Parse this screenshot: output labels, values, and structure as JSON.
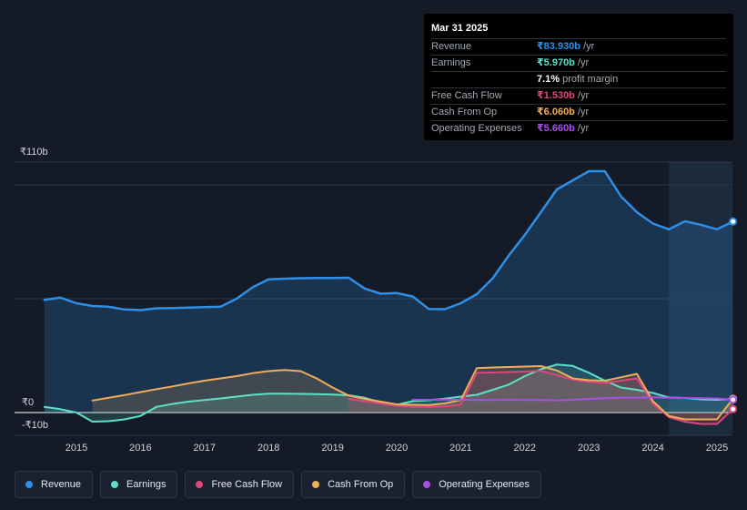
{
  "tooltip": {
    "date": "Mar 31 2025",
    "rows": [
      {
        "label": "Revenue",
        "value": "₹83.930b",
        "unit": "/yr",
        "color": "#2f8fe6"
      },
      {
        "label": "Earnings",
        "value": "₹5.970b",
        "unit": "/yr",
        "color": "#5ee0c8"
      },
      {
        "label": "",
        "value": "7.1%",
        "unit": "profit margin",
        "color": "#ffffff"
      },
      {
        "label": "Free Cash Flow",
        "value": "₹1.530b",
        "unit": "/yr",
        "color": "#e0457b"
      },
      {
        "label": "Cash From Op",
        "value": "₹6.060b",
        "unit": "/yr",
        "color": "#f0ad5a"
      },
      {
        "label": "Operating Expenses",
        "value": "₹5.660b",
        "unit": "/yr",
        "color": "#a94ee8"
      }
    ]
  },
  "chart_data": {
    "type": "area",
    "title": "",
    "xlabel": "",
    "ylabel": "",
    "ylim": [
      -10,
      110
    ],
    "y_tick_labels": [
      "₹110b",
      "₹0",
      "-₹10b"
    ],
    "y_ticks": [
      110,
      0,
      -10
    ],
    "x_tick_labels": [
      "2015",
      "2016",
      "2017",
      "2018",
      "2019",
      "2020",
      "2021",
      "2022",
      "2023",
      "2024",
      "2025"
    ],
    "x_ticks": [
      2015,
      2016,
      2017,
      2018,
      2019,
      2020,
      2021,
      2022,
      2023,
      2024,
      2025
    ],
    "xlim": [
      2014.5,
      2025.25
    ],
    "highlight_start": 2024.25,
    "series": [
      {
        "name": "Revenue",
        "color": "#2f8fe6",
        "fill": true,
        "x": [
          2014.5,
          2014.75,
          2015.0,
          2015.25,
          2015.5,
          2015.75,
          2016.0,
          2016.25,
          2016.5,
          2016.75,
          2017.0,
          2017.25,
          2017.5,
          2017.75,
          2018.0,
          2018.25,
          2018.5,
          2018.75,
          2019.0,
          2019.25,
          2019.5,
          2019.75,
          2020.0,
          2020.25,
          2020.5,
          2020.75,
          2021.0,
          2021.25,
          2021.5,
          2021.75,
          2022.0,
          2022.25,
          2022.5,
          2022.75,
          2023.0,
          2023.25,
          2023.5,
          2023.75,
          2024.0,
          2024.25,
          2024.5,
          2024.75,
          2025.0,
          2025.25
        ],
        "y": [
          49.5,
          50.5,
          48,
          46.8,
          46.5,
          45.3,
          45,
          45.8,
          45.9,
          46.1,
          46.3,
          46.5,
          50,
          55,
          58.5,
          58.8,
          59,
          59.1,
          59.1,
          59.2,
          54.5,
          52.2,
          52.5,
          51,
          45.5,
          45.4,
          48,
          52,
          59,
          69,
          78,
          88,
          98,
          102,
          106,
          106,
          95,
          88,
          83,
          80.5,
          84,
          82.5,
          80.5,
          83.9
        ]
      },
      {
        "name": "Earnings",
        "color": "#5ee0c8",
        "fill": true,
        "x": [
          2014.5,
          2014.75,
          2015.0,
          2015.25,
          2015.5,
          2015.75,
          2016.0,
          2016.25,
          2016.5,
          2016.75,
          2017.0,
          2017.25,
          2017.5,
          2017.75,
          2018.0,
          2018.25,
          2018.5,
          2018.75,
          2019.0,
          2019.25,
          2019.5,
          2019.75,
          2020.0,
          2020.25,
          2020.5,
          2020.75,
          2021.0,
          2021.25,
          2021.5,
          2021.75,
          2022.0,
          2022.25,
          2022.5,
          2022.75,
          2023.0,
          2023.25,
          2023.5,
          2023.75,
          2024.0,
          2024.25,
          2024.5,
          2024.75,
          2025.0,
          2025.25
        ],
        "y": [
          2.5,
          1.5,
          0,
          -4,
          -3.8,
          -3,
          -1.5,
          2.5,
          3.8,
          4.8,
          5.5,
          6.2,
          7,
          7.8,
          8.3,
          8.3,
          8.2,
          8.1,
          7.9,
          7.6,
          6.5,
          4.5,
          3.4,
          5,
          5.4,
          6.1,
          7,
          7.8,
          10,
          12.3,
          16,
          19,
          21.1,
          20.5,
          17.5,
          14,
          11,
          10,
          8.6,
          6.6,
          6.4,
          5.8,
          5.6,
          5.97
        ]
      },
      {
        "name": "Free Cash Flow",
        "color": "#e0457b",
        "fill": true,
        "x": [
          2019.25,
          2019.5,
          2019.75,
          2020.0,
          2020.25,
          2020.5,
          2020.75,
          2021.0,
          2021.25,
          2021.5,
          2021.75,
          2022.0,
          2022.25,
          2022.5,
          2022.75,
          2023.0,
          2023.25,
          2023.5,
          2023.75,
          2024.0,
          2024.25,
          2024.5,
          2024.75,
          2025.0,
          2025.25
        ],
        "y": [
          6,
          5,
          4,
          3,
          2.5,
          2.5,
          2.7,
          3.5,
          17.5,
          17.6,
          17.8,
          18,
          18.3,
          16.5,
          14.5,
          13.5,
          13,
          14,
          15,
          4,
          -2,
          -4,
          -5,
          -5,
          1.53
        ]
      },
      {
        "name": "Cash From Op",
        "color": "#f0ad5a",
        "fill": true,
        "x": [
          2015.25,
          2015.5,
          2015.75,
          2016.0,
          2016.25,
          2016.5,
          2016.75,
          2017.0,
          2017.25,
          2017.5,
          2017.75,
          2018.0,
          2018.25,
          2018.5,
          2018.75,
          2019.0,
          2019.25,
          2019.5,
          2019.75,
          2020.0,
          2020.25,
          2020.5,
          2020.75,
          2021.0,
          2021.25,
          2021.5,
          2021.75,
          2022.0,
          2022.25,
          2022.5,
          2022.75,
          2023.0,
          2023.25,
          2023.5,
          2023.75,
          2024.0,
          2024.25,
          2024.5,
          2024.75,
          2025.0,
          2025.25
        ],
        "y": [
          5.3,
          6.5,
          7.7,
          9,
          10.3,
          11.5,
          12.8,
          14,
          15,
          16,
          17.3,
          18.2,
          18.7,
          18.2,
          15,
          11,
          7.5,
          6,
          4.8,
          3.6,
          3.4,
          3.3,
          4,
          5.5,
          19.5,
          19.8,
          20,
          20.2,
          20.4,
          18.5,
          15,
          14.2,
          14,
          15.5,
          17,
          5,
          -1.5,
          -3,
          -3,
          -3,
          6.06
        ]
      },
      {
        "name": "Operating Expenses",
        "color": "#a94ee8",
        "fill": false,
        "x": [
          2020.25,
          2020.5,
          2020.75,
          2021.0,
          2021.25,
          2021.5,
          2021.75,
          2022.0,
          2022.25,
          2022.5,
          2022.75,
          2023.0,
          2023.25,
          2023.5,
          2023.75,
          2024.0,
          2024.25,
          2024.5,
          2024.75,
          2025.0,
          2025.25
        ],
        "y": [
          5.6,
          5.6,
          5.7,
          5.6,
          5.5,
          5.5,
          5.6,
          5.5,
          5.5,
          5.4,
          5.6,
          6,
          6.3,
          6.5,
          6.6,
          6.7,
          6.5,
          6.4,
          6.3,
          6.2,
          5.66
        ]
      }
    ]
  },
  "legend": [
    {
      "label": "Revenue",
      "color": "#2f8fe6"
    },
    {
      "label": "Earnings",
      "color": "#5ee0c8"
    },
    {
      "label": "Free Cash Flow",
      "color": "#e0457b"
    },
    {
      "label": "Cash From Op",
      "color": "#f0ad5a"
    },
    {
      "label": "Operating Expenses",
      "color": "#a94ee8"
    }
  ]
}
